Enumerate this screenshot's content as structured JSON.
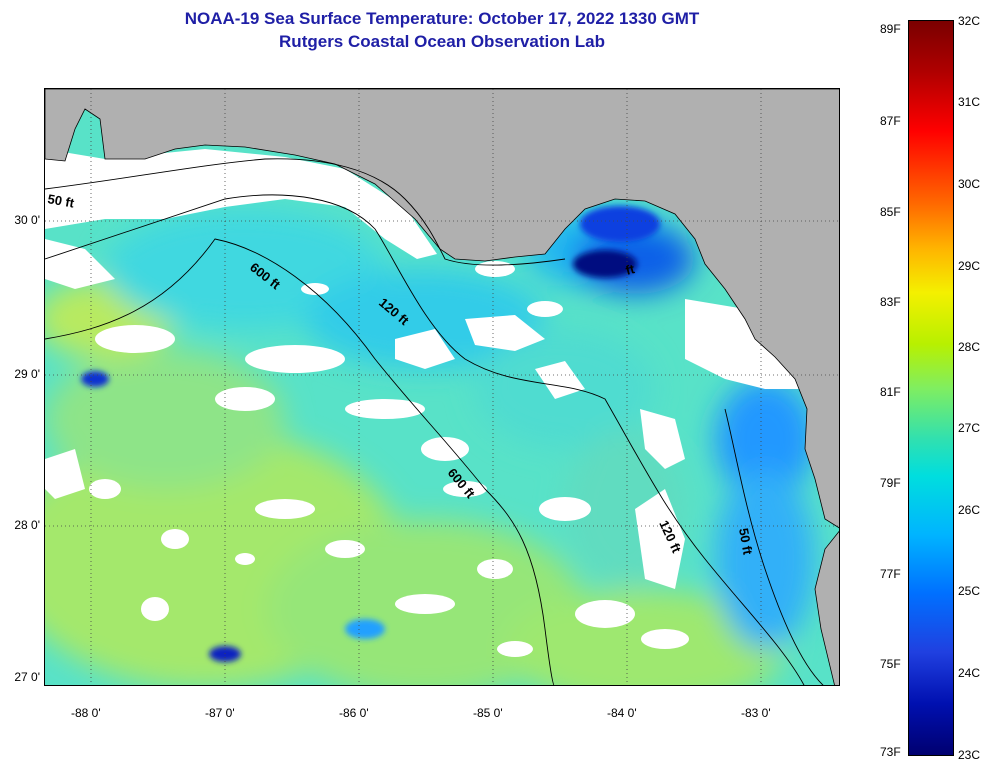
{
  "title": "NOAA-19 Sea Surface Temperature:  October 17, 2022 1330 GMT",
  "subtitle": "Rutgers Coastal Ocean Observation Lab",
  "lat_labels": [
    {
      "value": 30,
      "text": "30 0'"
    },
    {
      "value": 29,
      "text": "29 0'"
    },
    {
      "value": 28,
      "text": "28 0'"
    },
    {
      "value": 27,
      "text": "27 0'"
    }
  ],
  "lon_labels": [
    {
      "value": -88,
      "text": "-88 0'"
    },
    {
      "value": -87,
      "text": "-87 0'"
    },
    {
      "value": -86,
      "text": "-86 0'"
    },
    {
      "value": -85,
      "text": "-85 0'"
    },
    {
      "value": -84,
      "text": "-84 0'"
    },
    {
      "value": -83,
      "text": "-83 0'"
    }
  ],
  "lat_range": [
    26.97,
    30.85
  ],
  "lon_range": [
    -88.35,
    -82.42
  ],
  "depth_contours": [
    "50 ft",
    "120 ft",
    "600 ft"
  ],
  "contour_labels": {
    "c50a": "50 ft",
    "c50b": "50 ft",
    "c120a": "120 ft",
    "c120b": "120 ft",
    "c600a": "600 ft",
    "c600b": "600 ft",
    "c50c": "ft"
  },
  "colorbar": {
    "scale": "jet",
    "fahrenheit": [
      "89F",
      "87F",
      "85F",
      "83F",
      "81F",
      "79F",
      "77F",
      "75F",
      "73F"
    ],
    "celsius": [
      "32C",
      "31C",
      "30C",
      "29C",
      "28C",
      "27C",
      "26C",
      "25C",
      "24C",
      "23C"
    ],
    "min_c": 23,
    "max_c": 32
  },
  "colors": {
    "title": "#1f1fa6",
    "land": "#b0b0b0",
    "cloud": "#ffffff",
    "warm_sst": "#9fe870",
    "mid_sst": "#40e0c0",
    "cool_sst": "#20a0ff",
    "coldest_sst": "#0010a0"
  }
}
